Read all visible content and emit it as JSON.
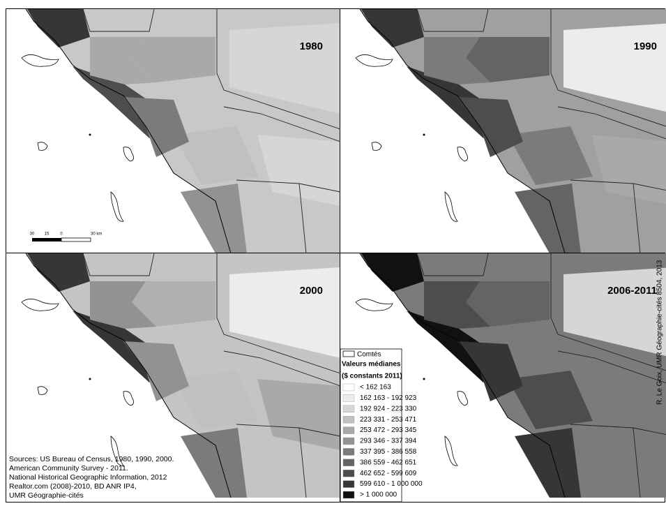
{
  "panels": [
    {
      "label": "1980"
    },
    {
      "label": "1990"
    },
    {
      "label": "2000"
    },
    {
      "label": "2006-2011"
    }
  ],
  "scale_bar": {
    "ticks": [
      "30",
      "15",
      "0",
      "30 km"
    ]
  },
  "legend": {
    "county_label": "Comtés",
    "title": "Valeurs médianes",
    "subtitle": "($ constants 2011)",
    "classes": [
      {
        "label": "< 162 163",
        "color": "#ffffff"
      },
      {
        "label": "162 163 - 192 923",
        "color": "#ececec"
      },
      {
        "label": "192 924 - 223 330",
        "color": "#d6d6d6"
      },
      {
        "label": "223 331 - 253 471",
        "color": "#c0c0c0"
      },
      {
        "label": "253 472 - 293 345",
        "color": "#a9a9a9"
      },
      {
        "label": "293 346 - 337 394",
        "color": "#929292"
      },
      {
        "label": "337 395 - 386 558",
        "color": "#7b7b7b"
      },
      {
        "label": "386 559 - 462 651",
        "color": "#646464"
      },
      {
        "label": "462 652 - 599 609",
        "color": "#4d4d4d"
      },
      {
        "label": "599 610 - 1 000 000",
        "color": "#363636"
      },
      {
        "label": "> 1 000 000",
        "color": "#111111"
      }
    ]
  },
  "sources": [
    "Sources: US Bureau of Census, 1980, 1990, 2000.",
    "American Community Survey - 2011.",
    "National Historical Geographic Information, 2012",
    "Realtor.com (2008)-2010, BD ANR IP4,",
    "UMR Géographie-cités"
  ],
  "credit": "R. Le Goix, UMR Géographie-cités 8504, 2013"
}
